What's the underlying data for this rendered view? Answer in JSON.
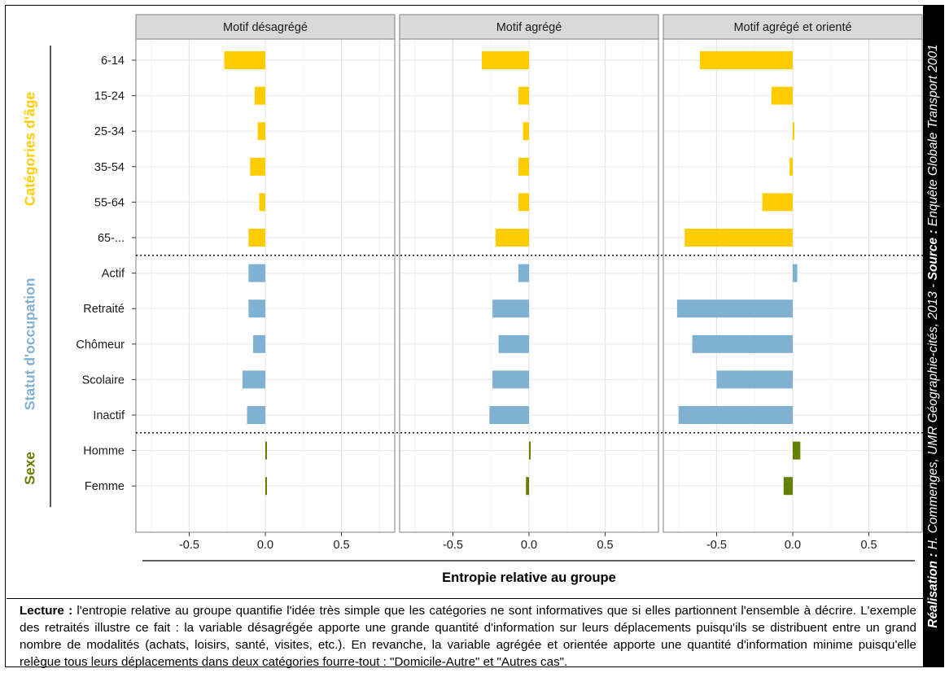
{
  "chart_data": {
    "type": "bar",
    "orientation": "horizontal",
    "panels": [
      "Motif désagrégé",
      "Motif agrégé",
      "Motif agrégé et orienté"
    ],
    "groups": [
      {
        "name": "Catégories d'âge",
        "color": "#ffcc00",
        "categories": [
          "6-14",
          "15-24",
          "25-34",
          "35-54",
          "55-64",
          "65-..."
        ]
      },
      {
        "name": "Statut d'occupation",
        "color": "#80b1d3",
        "categories": [
          "Actif",
          "Retraité",
          "Chômeur",
          "Scolaire",
          "Inactif"
        ]
      },
      {
        "name": "Sexe",
        "color": "#658000",
        "categories": [
          "Homme",
          "Femme"
        ]
      }
    ],
    "series": [
      {
        "panel": "Motif désagrégé",
        "values": [
          -0.27,
          -0.07,
          -0.05,
          -0.1,
          -0.04,
          -0.11,
          -0.11,
          -0.11,
          -0.08,
          -0.15,
          -0.12,
          0.01,
          0.005
        ]
      },
      {
        "panel": "Motif agrégé",
        "values": [
          -0.31,
          -0.07,
          -0.04,
          -0.07,
          -0.07,
          -0.22,
          -0.07,
          -0.24,
          -0.2,
          -0.24,
          -0.26,
          0.01,
          -0.02
        ]
      },
      {
        "panel": "Motif agrégé et orienté",
        "values": [
          -0.61,
          -0.14,
          0.01,
          -0.02,
          -0.2,
          -0.71,
          0.03,
          -0.76,
          -0.66,
          -0.5,
          -0.75,
          0.05,
          -0.06
        ]
      }
    ],
    "xlim": [
      -0.85,
      0.85
    ],
    "xticks": [
      -0.5,
      0.0,
      0.5
    ],
    "xtick_labels": [
      "-0.5",
      "0.0",
      "0.5"
    ],
    "xlabel": "Entropie relative au groupe",
    "ylabel": "",
    "title": "",
    "grid": true,
    "legend": "none"
  },
  "caption": {
    "lead": "Lecture :",
    "text": "l'entropie relative au groupe quantifie l'idée très simple que les catégories ne sont informatives que si elles partionnent l'ensemble à décrire. L'exemple des retraités illustre ce fait : la variable désagrégée apporte une grande quantité d'information sur leurs déplacements puisqu'ils se distribuent entre un grand nombre de modalités (achats, loisirs, santé, visites, etc.). En revanche, la variable agrégée et orientée apporte une quantité d'information minime puisqu'elle relègue tous leurs déplacements dans deux catégories fourre-tout : \"Domicile-Autre\" et \"Autres cas\"."
  },
  "side_credit": {
    "label1": "Réalisation :",
    "text1": "H. Commenges, UMR Géographie-cités, 2013 -",
    "label2": "Source :",
    "text2": "Enquête Globale Transport 2001"
  }
}
